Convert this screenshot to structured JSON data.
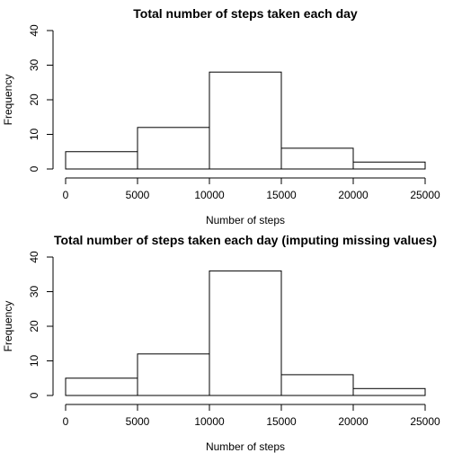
{
  "chart_data": [
    {
      "type": "bar",
      "title": "Total number of steps taken each day",
      "xlabel": "Number of steps",
      "ylabel": "Frequency",
      "bins": [
        [
          0,
          5000
        ],
        [
          5000,
          10000
        ],
        [
          10000,
          15000
        ],
        [
          15000,
          20000
        ],
        [
          20000,
          25000
        ]
      ],
      "values": [
        5,
        12,
        28,
        6,
        2
      ],
      "xlim": [
        0,
        25000
      ],
      "ylim": [
        0,
        40
      ],
      "xticks": [
        0,
        5000,
        10000,
        15000,
        20000,
        25000
      ],
      "yticks": [
        0,
        10,
        20,
        30,
        40
      ],
      "grid": false
    },
    {
      "type": "bar",
      "title": "Total number of steps taken each day (imputing missing values)",
      "xlabel": "Number of steps",
      "ylabel": "Frequency",
      "bins": [
        [
          0,
          5000
        ],
        [
          5000,
          10000
        ],
        [
          10000,
          15000
        ],
        [
          15000,
          20000
        ],
        [
          20000,
          25000
        ]
      ],
      "values": [
        5,
        12,
        36,
        6,
        2
      ],
      "xlim": [
        0,
        25000
      ],
      "ylim": [
        0,
        40
      ],
      "xticks": [
        0,
        5000,
        10000,
        15000,
        20000,
        25000
      ],
      "yticks": [
        0,
        10,
        20,
        30,
        40
      ],
      "grid": false
    }
  ]
}
